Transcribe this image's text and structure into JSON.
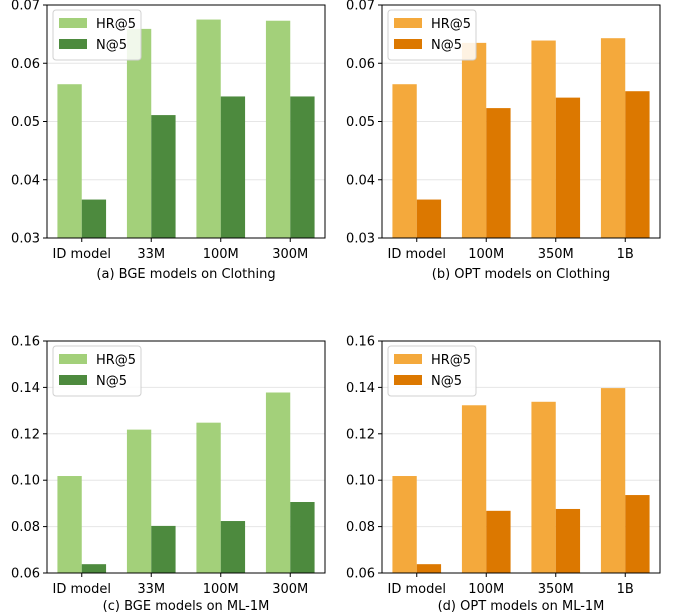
{
  "chart_data": [
    {
      "type": "bar",
      "title": "(a) BGE models on Clothing",
      "categories": [
        "ID model",
        "33M",
        "100M",
        "300M"
      ],
      "ylim": [
        0.03,
        0.07
      ],
      "yticks": [
        "0.03",
        "0.04",
        "0.05",
        "0.06",
        "0.07"
      ],
      "grid": true,
      "legend": "top-left",
      "series": [
        {
          "name": "HR@5",
          "color": "#a3d07a",
          "values": [
            0.0564,
            0.0659,
            0.0675,
            0.0673
          ]
        },
        {
          "name": "N@5",
          "color": "#4d8a3e",
          "values": [
            0.0366,
            0.0511,
            0.0543,
            0.0543
          ]
        }
      ]
    },
    {
      "type": "bar",
      "title": "(b) OPT models on Clothing",
      "categories": [
        "ID model",
        "100M",
        "350M",
        "1B"
      ],
      "ylim": [
        0.03,
        0.07
      ],
      "yticks": [
        "0.03",
        "0.04",
        "0.05",
        "0.06",
        "0.07"
      ],
      "grid": true,
      "legend": "top-left",
      "series": [
        {
          "name": "HR@5",
          "color": "#f4a93c",
          "values": [
            0.0564,
            0.0635,
            0.0639,
            0.0643
          ]
        },
        {
          "name": "N@5",
          "color": "#dc7800",
          "values": [
            0.0366,
            0.0523,
            0.0541,
            0.0552
          ]
        }
      ]
    },
    {
      "type": "bar",
      "title": "(c) BGE models on ML-1M",
      "categories": [
        "ID model",
        "33M",
        "100M",
        "300M"
      ],
      "ylim": [
        0.06,
        0.16
      ],
      "yticks": [
        "0.06",
        "0.08",
        "0.10",
        "0.12",
        "0.14",
        "0.16"
      ],
      "grid": true,
      "legend": "top-left",
      "series": [
        {
          "name": "HR@5",
          "color": "#a3d07a",
          "values": [
            0.1018,
            0.1218,
            0.1248,
            0.1378
          ]
        },
        {
          "name": "N@5",
          "color": "#4d8a3e",
          "values": [
            0.0638,
            0.0803,
            0.0824,
            0.0906
          ]
        }
      ]
    },
    {
      "type": "bar",
      "title": "(d) OPT models on ML-1M",
      "categories": [
        "ID model",
        "100M",
        "350M",
        "1B"
      ],
      "ylim": [
        0.06,
        0.16
      ],
      "yticks": [
        "0.06",
        "0.08",
        "0.10",
        "0.12",
        "0.14",
        "0.16"
      ],
      "grid": true,
      "legend": "top-left",
      "series": [
        {
          "name": "HR@5",
          "color": "#f4a93c",
          "values": [
            0.1018,
            0.1323,
            0.1338,
            0.1397
          ]
        },
        {
          "name": "N@5",
          "color": "#dc7800",
          "values": [
            0.0638,
            0.0868,
            0.0876,
            0.0936
          ]
        }
      ]
    }
  ]
}
